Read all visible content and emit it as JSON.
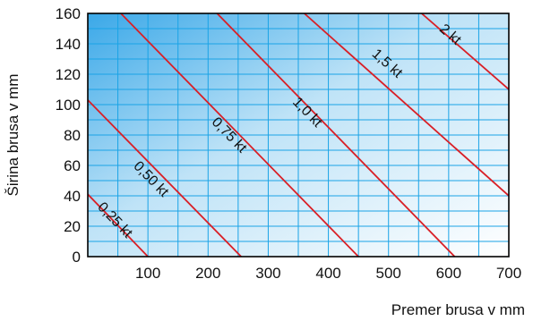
{
  "chart_data": {
    "type": "line",
    "title": "",
    "xlabel": "Premer brusa v mm",
    "ylabel": "Širina brusa v mm",
    "xlim": [
      0,
      700
    ],
    "ylim": [
      0,
      160
    ],
    "x_ticks": [
      100,
      200,
      300,
      400,
      500,
      600,
      700
    ],
    "x_tick_labels": [
      "100",
      "200",
      "300",
      "400",
      "500",
      "600",
      "700"
    ],
    "y_ticks": [
      0,
      20,
      40,
      60,
      80,
      100,
      120,
      140,
      160
    ],
    "y_tick_labels": [
      "0",
      "20",
      "40",
      "60",
      "80",
      "100",
      "120",
      "140",
      "160"
    ],
    "x_grid_step": 50,
    "y_grid_step": 10,
    "grid": true,
    "background": "blue gradient, darkest top-left",
    "series": [
      {
        "name": "0,25 kt",
        "points": [
          [
            0,
            41
          ],
          [
            100,
            0
          ]
        ]
      },
      {
        "name": "0,50 kt",
        "points": [
          [
            0,
            103
          ],
          [
            255,
            0
          ]
        ]
      },
      {
        "name": "0,75 kt",
        "points": [
          [
            55,
            160
          ],
          [
            450,
            0
          ]
        ]
      },
      {
        "name": "1,0 kt",
        "points": [
          [
            215,
            160
          ],
          [
            610,
            0
          ]
        ]
      },
      {
        "name": "1,5 kt",
        "points": [
          [
            360,
            160
          ],
          [
            700,
            40
          ]
        ]
      },
      {
        "name": "2 kt",
        "points": [
          [
            555,
            160
          ],
          [
            700,
            110
          ]
        ]
      }
    ],
    "line_color": "#d91f26",
    "grid_color": "#1aa3e6"
  }
}
